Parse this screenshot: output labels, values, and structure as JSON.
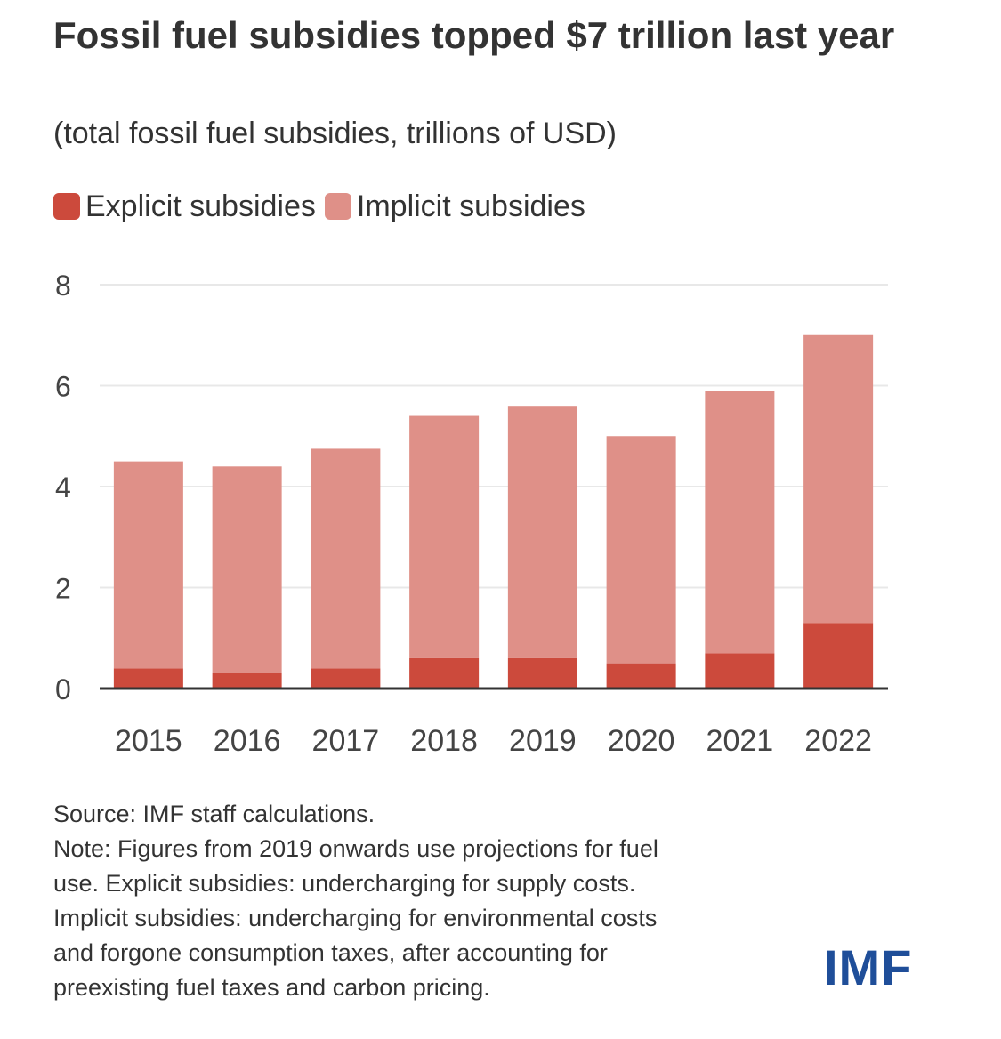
{
  "title": "Fossil fuel subsidies topped $7 trillion last year",
  "subtitle": "(total fossil fuel subsidies, trillions of USD)",
  "legend": {
    "explicit": "Explicit subsidies",
    "implicit": "Implicit subsidies"
  },
  "colors": {
    "explicit": "#cc4a3c",
    "implicit": "#df9088",
    "axis": "#333333",
    "grid": "#e8e8e8"
  },
  "chart_data": {
    "type": "bar",
    "stacked": true,
    "categories": [
      "2015",
      "2016",
      "2017",
      "2018",
      "2019",
      "2020",
      "2021",
      "2022"
    ],
    "series": [
      {
        "name": "Explicit subsidies",
        "values": [
          0.4,
          0.3,
          0.4,
          0.6,
          0.6,
          0.5,
          0.7,
          1.3
        ]
      },
      {
        "name": "Implicit subsidies",
        "values": [
          4.1,
          4.1,
          4.35,
          4.8,
          5.0,
          4.5,
          5.2,
          5.7
        ]
      }
    ],
    "ylim": [
      0,
      8
    ],
    "yticks": [
      "0",
      "2",
      "4",
      "6",
      "8"
    ],
    "grid": true,
    "legend_position": "top-left"
  },
  "notes": [
    "Source: IMF staff calculations.",
    "Note: Figures from 2019 onwards use projections for fuel",
    "use. Explicit subsidies: undercharging for supply costs.",
    "Implicit subsidies: undercharging for environmental costs",
    "and forgone consumption taxes, after accounting for",
    "preexisting fuel taxes and carbon pricing."
  ],
  "logo": "IMF"
}
